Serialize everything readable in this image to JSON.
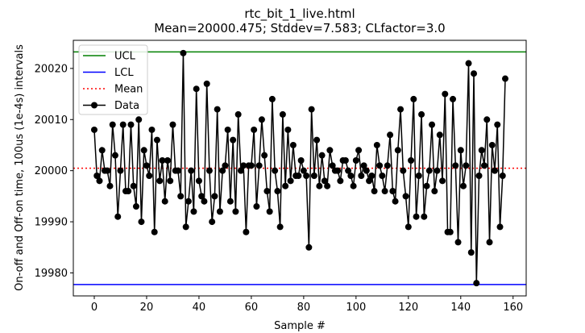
{
  "chart_data": {
    "type": "line",
    "title": "rtc_bit_1_live.html",
    "subtitle": "Mean=20000.475; Stddev=7.583; CLfactor=3.0",
    "xlabel": "Sample #",
    "ylabel": "On-off and Off-on time, 100us (1e-4s) intervals",
    "xlim": [
      -8,
      165
    ],
    "ylim": [
      19975.5,
      20025.5
    ],
    "x_ticks": [
      0,
      20,
      40,
      60,
      80,
      100,
      120,
      140,
      160
    ],
    "y_ticks": [
      19980,
      19990,
      20000,
      20010,
      20020
    ],
    "grid": false,
    "legend_position": "top-left",
    "colors": {
      "ucl": "#008000",
      "lcl": "#0000ff",
      "mean": "#ff0000",
      "data": "#000000"
    },
    "reference_lines": [
      {
        "name": "UCL",
        "y": 20023.224,
        "style": "solid",
        "color": "#008000"
      },
      {
        "name": "LCL",
        "y": 19977.726,
        "style": "solid",
        "color": "#0000ff"
      },
      {
        "name": "Mean",
        "y": 20000.475,
        "style": "dotted",
        "color": "#ff0000"
      }
    ],
    "series": [
      {
        "name": "Data",
        "marker": "circle",
        "color": "#000000",
        "x_start": 0,
        "values": [
          20008,
          19999,
          19998,
          20004,
          20000,
          20000,
          19997,
          20009,
          20003,
          19991,
          20000,
          20009,
          19996,
          19996,
          20009,
          19997,
          19993,
          20010,
          19990,
          20004,
          20001,
          19999,
          20008,
          19988,
          20006,
          19998,
          20002,
          19994,
          20002,
          19998,
          20009,
          20000,
          20000,
          19995,
          20023,
          19989,
          19994,
          20000,
          19992,
          20016,
          19998,
          19995,
          19994,
          20017,
          20000,
          19990,
          19995,
          20012,
          19992,
          20000,
          20001,
          20008,
          19994,
          20006,
          19992,
          20011,
          20000,
          20001,
          19988,
          20001,
          20001,
          20008,
          19993,
          20001,
          20010,
          20003,
          19996,
          19992,
          20014,
          20000,
          19996,
          19989,
          20011,
          19997,
          20008,
          19998,
          20005,
          19999,
          19999,
          20002,
          20000,
          19999,
          19985,
          20012,
          19999,
          20006,
          19997,
          20003,
          19998,
          19997,
          20004,
          20001,
          20000,
          20000,
          19998,
          20002,
          20002,
          20000,
          19999,
          19997,
          20002,
          20004,
          19999,
          20001,
          20000,
          19998,
          19999,
          19996,
          20005,
          20001,
          19999,
          19996,
          20001,
          20007,
          19996,
          19994,
          20004,
          20012,
          20000,
          19995,
          19989,
          20002,
          20014,
          19991,
          19999,
          20011,
          19991,
          19997,
          20000,
          20009,
          19996,
          20000,
          20007,
          19998,
          20015,
          19988,
          19988,
          20014,
          20001,
          19986,
          20004,
          19997,
          20001,
          20021,
          19984,
          20019,
          19978,
          19999,
          20004,
          20001,
          20010,
          19986,
          20005,
          20000,
          20009,
          19989,
          19999,
          20018
        ]
      }
    ]
  }
}
